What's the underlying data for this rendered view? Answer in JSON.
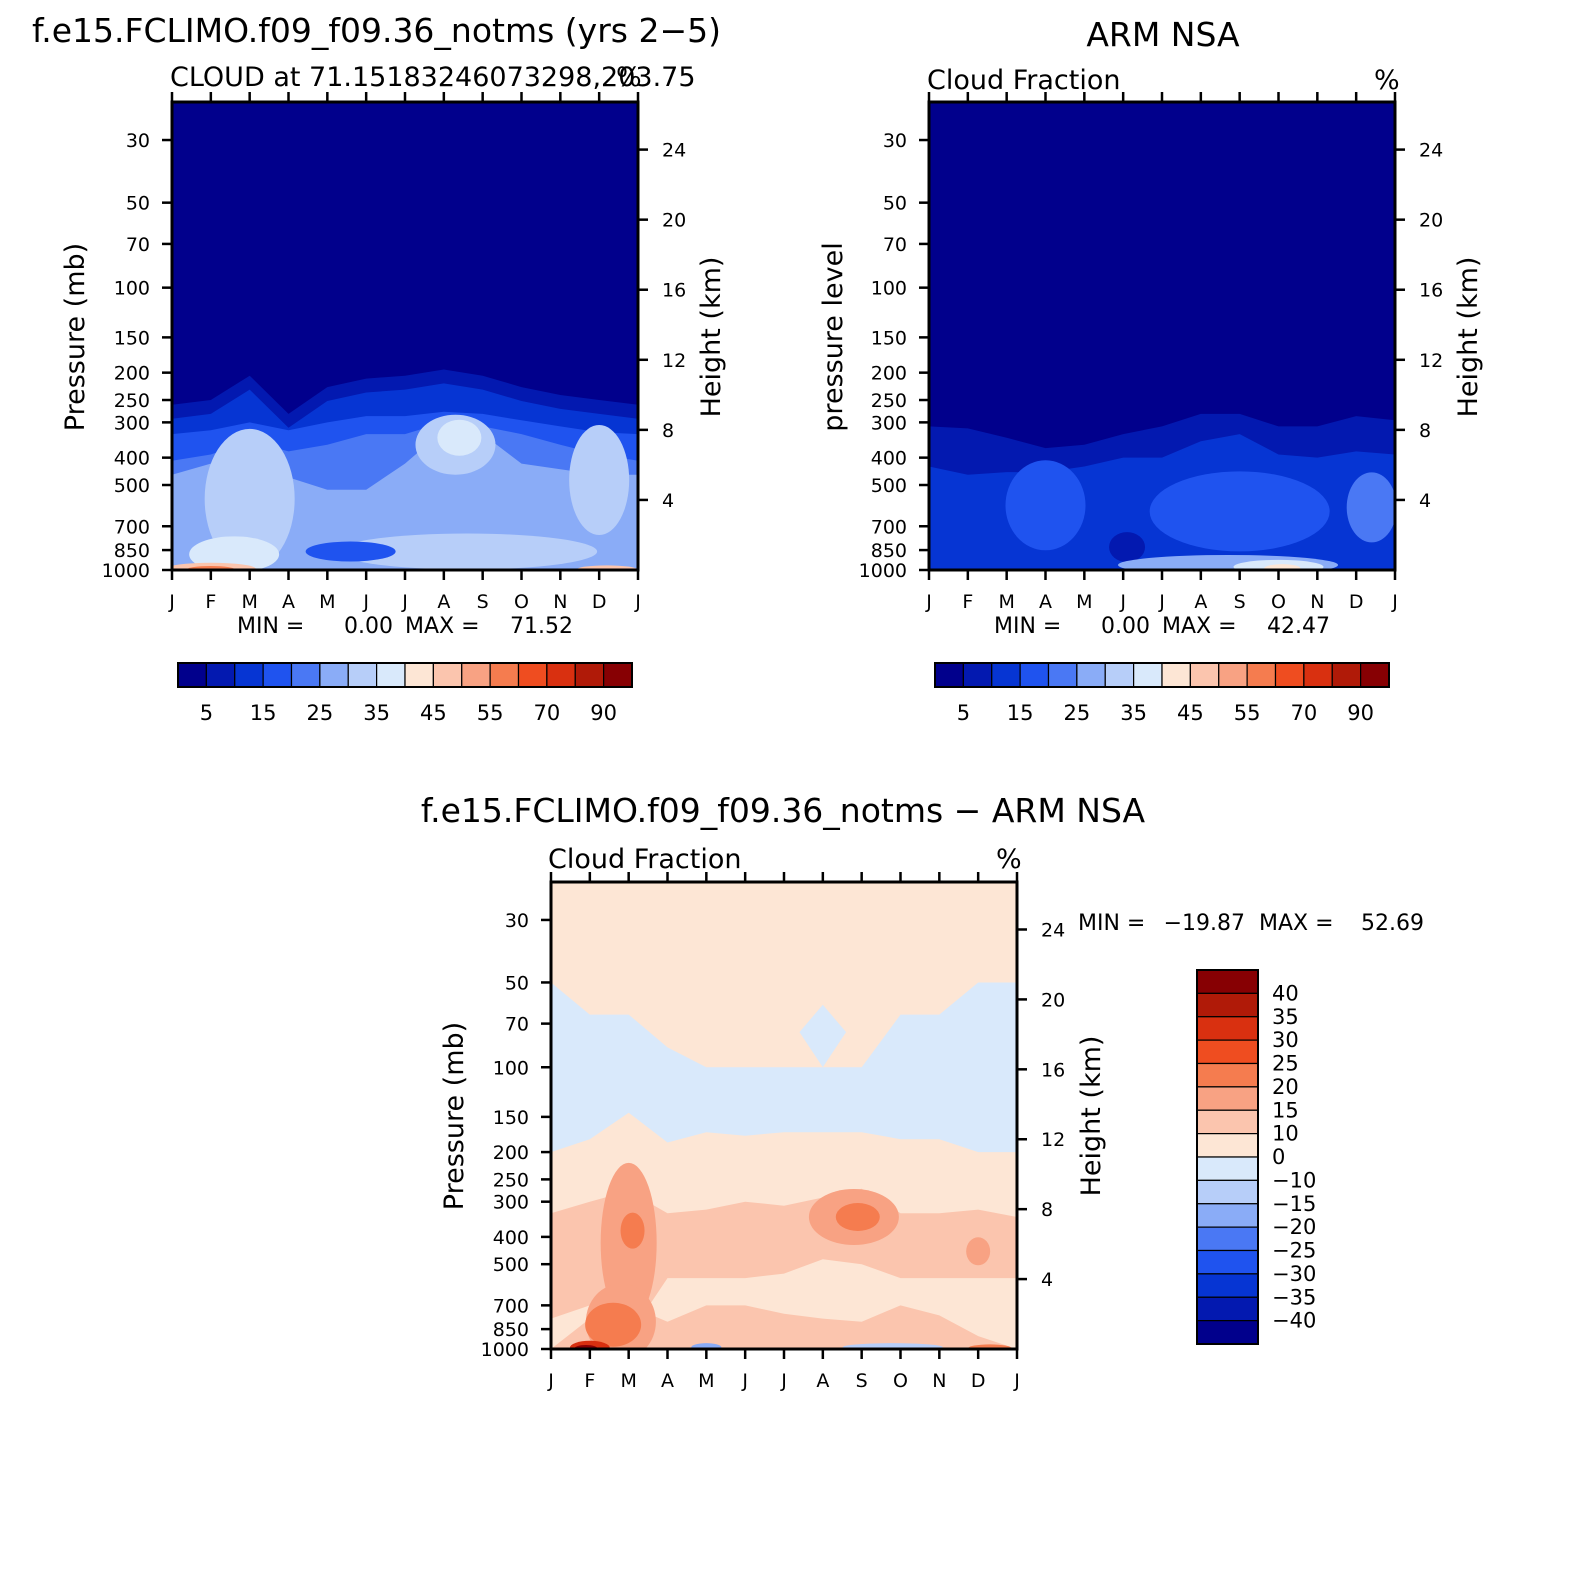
{
  "chart_data": [
    {
      "type": "heatmap",
      "id": "model",
      "title": "f.e15.FCLIMO.f09_f09.36_notms (yrs 2−5)",
      "subtitle_left": "CLOUD at 71.15183246073298,203.75",
      "subtitle_right": "%",
      "ylabel_left": "Pressure (mb)",
      "ylabel_right": "Height (km)",
      "x_ticks": [
        "J",
        "F",
        "M",
        "A",
        "M",
        "J",
        "J",
        "A",
        "S",
        "O",
        "N",
        "D",
        "J"
      ],
      "y_pressure_ticks": [
        30,
        50,
        70,
        100,
        150,
        200,
        250,
        300,
        400,
        500,
        700,
        850,
        1000
      ],
      "y_height_ticks": [
        24,
        20,
        16,
        12,
        8,
        4
      ],
      "ylim_pressure": [
        1000,
        22
      ],
      "stats": {
        "min_label": "MIN =",
        "min": "0.00",
        "max_label": "MAX =",
        "max": "71.52"
      },
      "cloud_top_pressure_by_month": [
        260,
        250,
        205,
        280,
        225,
        210,
        205,
        195,
        205,
        225,
        240,
        250,
        260
      ],
      "levels": [
        5,
        10,
        15,
        20,
        25,
        30,
        35,
        40,
        45,
        50,
        55,
        60,
        70,
        80,
        90
      ],
      "colorbar_labels": [
        "5",
        "15",
        "25",
        "35",
        "45",
        "55",
        "70",
        "90"
      ],
      "regions": [
        {
          "fill": "#062dbd",
          "desc": "mid-level cloud layer 5–10%"
        },
        {
          "fill": "#2b63e8",
          "desc": "cloud 15–20% around 300–500 mb"
        },
        {
          "fill": "#8ab0f3",
          "desc": "cloud 30% mid troposphere"
        },
        {
          "fill": "#b9d1f8",
          "desc": "cloud 35% near 350 mb Aug and 500 mb Nov"
        },
        {
          "fill": "#d5e6fb",
          "desc": "low cloud 40% Feb–Mar and Oct"
        },
        {
          "fill": "#f4a38d",
          "desc": "surface maximum ~70% in Feb"
        }
      ]
    },
    {
      "type": "heatmap",
      "id": "obs",
      "title": "ARM NSA",
      "subtitle_left": "Cloud Fraction",
      "subtitle_right": "%",
      "ylabel_left": "pressure level",
      "ylabel_right": "Height (km)",
      "x_ticks": [
        "J",
        "F",
        "M",
        "A",
        "M",
        "J",
        "J",
        "A",
        "S",
        "O",
        "N",
        "D",
        "J"
      ],
      "y_pressure_ticks": [
        30,
        50,
        70,
        100,
        150,
        200,
        250,
        300,
        400,
        500,
        700,
        850,
        1000
      ],
      "y_height_ticks": [
        24,
        20,
        16,
        12,
        8,
        4
      ],
      "ylim_pressure": [
        1000,
        22
      ],
      "stats": {
        "min_label": "MIN =",
        "min": "0.00",
        "max_label": "MAX =",
        "max": "42.47"
      },
      "levels": [
        5,
        10,
        15,
        20,
        25,
        30,
        35,
        40,
        45,
        50,
        55,
        60,
        70,
        80,
        90
      ],
      "colorbar_labels": [
        "5",
        "15",
        "25",
        "35",
        "45",
        "55",
        "70",
        "90"
      ],
      "regions": [
        {
          "fill": "#062dbd",
          "desc": "cloud 5–10% upper layer"
        },
        {
          "fill": "#1c48d8",
          "desc": "cloud 15% mid troposphere"
        },
        {
          "fill": "#3a6ff0",
          "desc": "cloud 20% pockets"
        },
        {
          "fill": "#d5e6fb",
          "desc": "near-surface ~40% in Oct"
        }
      ]
    },
    {
      "type": "heatmap",
      "id": "diff",
      "title": "f.e15.FCLIMO.f09_f09.36_notms − ARM NSA",
      "subtitle_left": "Cloud Fraction",
      "subtitle_right": "%",
      "ylabel_left": "Pressure (mb)",
      "ylabel_right": "Height (km)",
      "x_ticks": [
        "J",
        "F",
        "M",
        "A",
        "M",
        "J",
        "J",
        "A",
        "S",
        "O",
        "N",
        "D",
        "J"
      ],
      "y_pressure_ticks": [
        30,
        50,
        70,
        100,
        150,
        200,
        250,
        300,
        400,
        500,
        700,
        850,
        1000
      ],
      "y_height_ticks": [
        24,
        20,
        16,
        12,
        8,
        4
      ],
      "ylim_pressure": [
        1000,
        22
      ],
      "stats": {
        "min_label": "MIN =",
        "min": "−19.87",
        "max_label": "MAX =",
        "max": "52.69"
      },
      "levels": [
        -40,
        -35,
        -30,
        -25,
        -20,
        -15,
        -10,
        0,
        10,
        15,
        20,
        25,
        30,
        35,
        40
      ],
      "colorbar_labels": [
        "40",
        "35",
        "30",
        "25",
        "20",
        "15",
        "10",
        "0",
        "−10",
        "−15",
        "−20",
        "−25",
        "−30",
        "−35",
        "−40"
      ],
      "regions": [
        {
          "fill": "#d5e6fb",
          "desc": "-10 to 0 band 50–200 mb"
        },
        {
          "fill": "#fde5d4",
          "desc": "0 to 10 background"
        },
        {
          "fill": "#fbcab2",
          "desc": "10 to 15 around 300–500 mb"
        },
        {
          "fill": "#f49d7d",
          "desc": "15 to 20 Feb–Mar and Aug–Sep"
        },
        {
          "fill": "#f06a3c",
          "desc": "20 to 25 maxima"
        },
        {
          "fill": "#b01c10",
          "desc": "surface maximum ~52 in Feb"
        }
      ]
    }
  ],
  "colors": {
    "seq_model": [
      "#01008c",
      "#0319b0",
      "#0635d3",
      "#1f53ef",
      "#4a78f4",
      "#8aacf7",
      "#b7cef9",
      "#d9e9fb",
      "#fde6d5",
      "#fbc5ae",
      "#f8a283",
      "#f57c4f",
      "#ef4d20",
      "#d93010",
      "#b01a08",
      "#870003"
    ],
    "div_levels": [
      "#01008c",
      "#0319b0",
      "#0635d3",
      "#1f53ef",
      "#4a78f4",
      "#8aacf7",
      "#b7cef9",
      "#d9e9fb",
      "#fde6d5",
      "#fbc5ae",
      "#f8a283",
      "#f57c4f",
      "#ef4d20",
      "#d93010",
      "#b01a08",
      "#870003"
    ]
  }
}
